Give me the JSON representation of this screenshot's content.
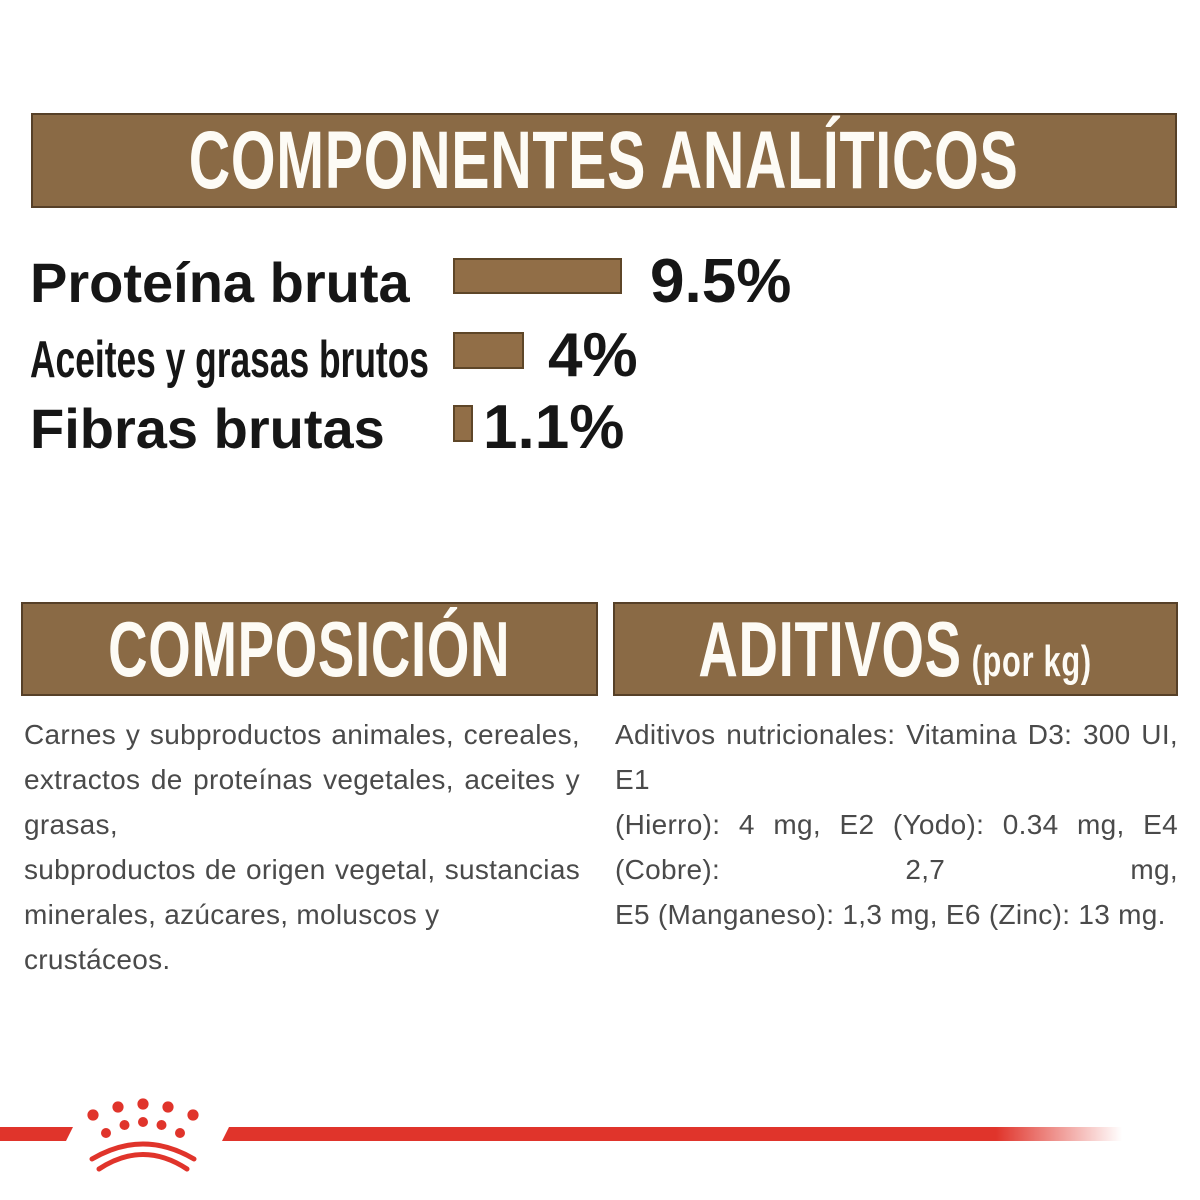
{
  "header": {
    "title": "COMPONENTES ANALÍTICOS"
  },
  "chart_data": {
    "type": "bar",
    "orientation": "horizontal",
    "title": "COMPONENTES ANALÍTICOS",
    "categories": [
      "Proteína bruta",
      "Aceites y grasas brutos",
      "Fibras brutas"
    ],
    "values": [
      9.5,
      4,
      1.1
    ],
    "value_labels": [
      "9.5%",
      "4%",
      "1.1%"
    ],
    "unit": "%",
    "xlim": [
      0,
      10
    ],
    "grid": false,
    "legend": "none",
    "bar_color": "#916e47"
  },
  "composition": {
    "title": "COMPOSICIÓN",
    "text": "Carnes y subproductos animales, cereales, extractos de proteínas vegetales, aceites y grasas, subproductos de origen vegetal, sustancias minerales, azúcares, moluscos y crustáceos.",
    "lines": [
      "Carnes y subproductos animales, cereales,",
      "extractos de proteínas vegetales, aceites y grasas,",
      "subproductos de origen vegetal, sustancias",
      "minerales, azúcares, moluscos y crustáceos."
    ]
  },
  "additives": {
    "title": "ADITIVOS",
    "unit_note": "(por kg)",
    "text": "Aditivos nutricionales: Vitamina D3: 300 UI, E1 (Hierro): 4 mg, E2 (Yodo): 0.34 mg, E4 (Cobre): 2,7 mg, E5 (Manganeso): 1,3 mg, E6 (Zinc): 13 mg.",
    "lines": [
      "Aditivos nutricionales: Vitamina D3: 300 UI, E1",
      "(Hierro): 4 mg, E2 (Yodo): 0.34 mg, E4 (Cobre): 2,7 mg,",
      "E5 (Manganeso): 1,3 mg, E6 (Zinc): 13 mg."
    ]
  },
  "footer": {
    "brand_mark": "royal-canin-crown"
  },
  "colors": {
    "background": "#ffffff",
    "brown": "#8a6a45",
    "brown_border": "#564028",
    "bar_fill": "#916e47",
    "bar_border": "#5e4628",
    "red": "#e0342b",
    "text_black": "#161616",
    "text_gray": "#4a4a4a",
    "title_white": "#fdfbf5"
  }
}
